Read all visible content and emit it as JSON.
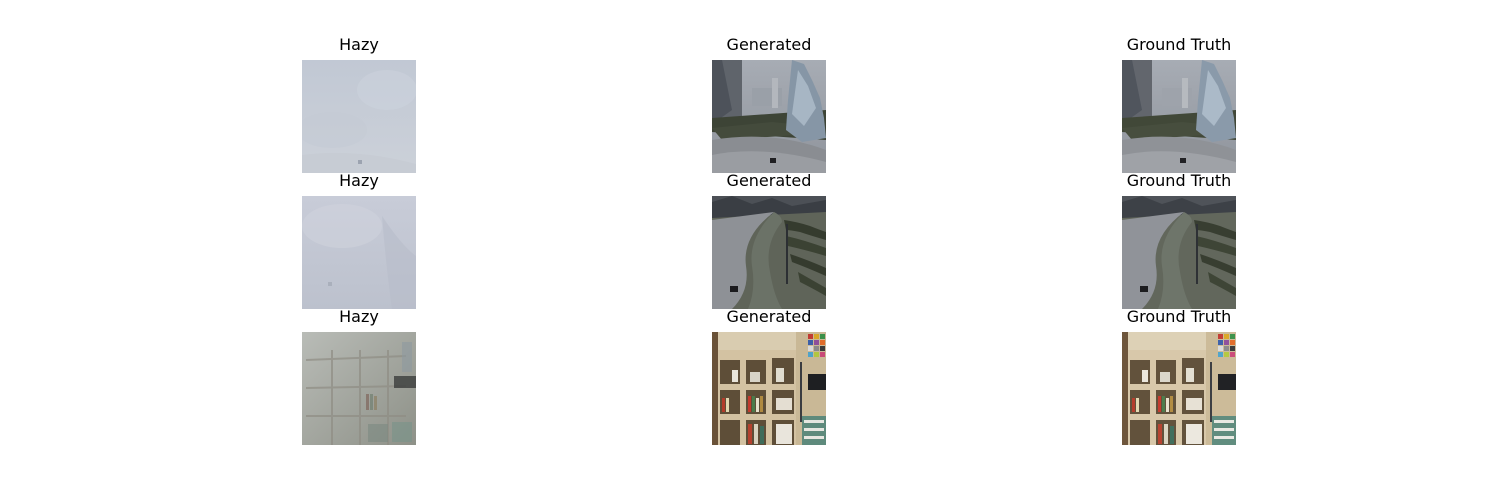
{
  "rows": [
    {
      "titles": [
        "Hazy",
        "Generated",
        "Ground Truth"
      ],
      "scene": "park-path-frosty-shrub"
    },
    {
      "titles": [
        "Hazy",
        "Generated",
        "Ground Truth"
      ],
      "scene": "park-curved-path-hedge-maze"
    },
    {
      "titles": [
        "Hazy",
        "Generated",
        "Ground Truth"
      ],
      "scene": "indoor-bookshelf-color-chart"
    }
  ],
  "colors": {
    "background": "#ffffff",
    "title_text": "#000000",
    "haze": "#c6ccd6",
    "haze_indoor": "#a8a89e",
    "path": "#8d9095",
    "grass": "#646a5e",
    "hedge": "#3c4234",
    "frost": "#a9b8c6",
    "shelf_wood": "#d3c2a2",
    "shelf_dark": "#5e4e38"
  }
}
